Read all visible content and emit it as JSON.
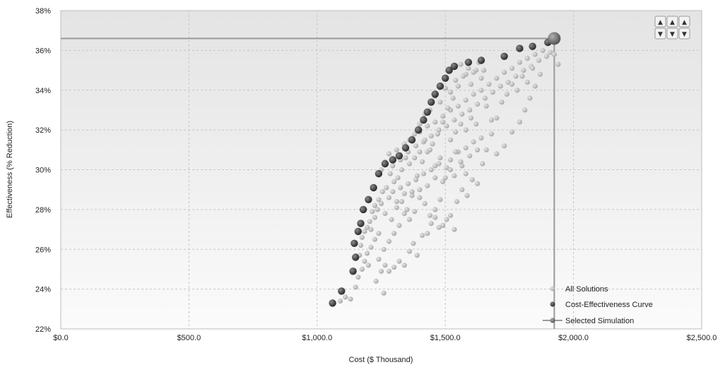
{
  "chart_data": {
    "type": "scatter",
    "xlabel": "Cost ($ Thousand)",
    "ylabel": "Effectiveness (% Reduction)",
    "xlim": [
      0,
      2500
    ],
    "ylim": [
      22,
      38
    ],
    "x_ticks": [
      "$0.0",
      "$500.0",
      "$1,000.0",
      "$1,500.0",
      "$2,000.0",
      "$2,500.0"
    ],
    "y_ticks": [
      "22%",
      "24%",
      "26%",
      "28%",
      "30%",
      "32%",
      "34%",
      "36%",
      "38%"
    ],
    "grid": true,
    "legend_position": "bottom-right",
    "series": [
      {
        "name": "All Solutions",
        "color": "#c2c2c2",
        "points": [
          [
            1090,
            23.4
          ],
          [
            1110,
            23.6
          ],
          [
            1130,
            23.5
          ],
          [
            1150,
            24.1
          ],
          [
            1160,
            24.6
          ],
          [
            1175,
            25.0
          ],
          [
            1185,
            25.4
          ],
          [
            1195,
            25.8
          ],
          [
            1210,
            26.1
          ],
          [
            1225,
            26.5
          ],
          [
            1240,
            25.5
          ],
          [
            1250,
            24.9
          ],
          [
            1265,
            25.2
          ],
          [
            1280,
            24.9
          ],
          [
            1300,
            25.1
          ],
          [
            1320,
            25.4
          ],
          [
            1340,
            25.2
          ],
          [
            1360,
            25.9
          ],
          [
            1375,
            26.3
          ],
          [
            1390,
            25.7
          ],
          [
            1410,
            26.7
          ],
          [
            1430,
            26.8
          ],
          [
            1445,
            27.3
          ],
          [
            1460,
            27.6
          ],
          [
            1475,
            27.1
          ],
          [
            1490,
            27.2
          ],
          [
            1505,
            27.5
          ],
          [
            1520,
            27.7
          ],
          [
            1535,
            27.0
          ],
          [
            1210,
            27.0
          ],
          [
            1225,
            27.6
          ],
          [
            1235,
            28.0
          ],
          [
            1250,
            28.3
          ],
          [
            1265,
            27.8
          ],
          [
            1280,
            28.6
          ],
          [
            1295,
            28.9
          ],
          [
            1310,
            28.4
          ],
          [
            1325,
            29.1
          ],
          [
            1340,
            28.8
          ],
          [
            1355,
            29.3
          ],
          [
            1370,
            28.7
          ],
          [
            1385,
            29.5
          ],
          [
            1400,
            29.0
          ],
          [
            1415,
            29.8
          ],
          [
            1430,
            29.2
          ],
          [
            1445,
            30.0
          ],
          [
            1460,
            29.6
          ],
          [
            1475,
            30.3
          ],
          [
            1490,
            29.4
          ],
          [
            1505,
            30.1
          ],
          [
            1520,
            30.5
          ],
          [
            1535,
            29.7
          ],
          [
            1550,
            30.9
          ],
          [
            1565,
            30.2
          ],
          [
            1580,
            31.1
          ],
          [
            1595,
            30.7
          ],
          [
            1610,
            31.4
          ],
          [
            1625,
            31.0
          ],
          [
            1640,
            31.6
          ],
          [
            1250,
            30.0
          ],
          [
            1265,
            30.4
          ],
          [
            1280,
            30.8
          ],
          [
            1295,
            30.2
          ],
          [
            1310,
            31.0
          ],
          [
            1325,
            30.5
          ],
          [
            1340,
            31.3
          ],
          [
            1355,
            30.9
          ],
          [
            1370,
            31.6
          ],
          [
            1385,
            31.2
          ],
          [
            1400,
            31.9
          ],
          [
            1415,
            31.4
          ],
          [
            1430,
            32.2
          ],
          [
            1445,
            31.7
          ],
          [
            1460,
            32.4
          ],
          [
            1475,
            32.0
          ],
          [
            1490,
            32.7
          ],
          [
            1505,
            32.2
          ],
          [
            1520,
            33.0
          ],
          [
            1535,
            32.5
          ],
          [
            1550,
            33.2
          ],
          [
            1565,
            32.8
          ],
          [
            1580,
            33.5
          ],
          [
            1595,
            33.0
          ],
          [
            1610,
            33.8
          ],
          [
            1625,
            33.3
          ],
          [
            1640,
            34.0
          ],
          [
            1655,
            33.6
          ],
          [
            1670,
            34.3
          ],
          [
            1685,
            33.9
          ],
          [
            1700,
            34.6
          ],
          [
            1715,
            34.2
          ],
          [
            1730,
            34.9
          ],
          [
            1745,
            34.4
          ],
          [
            1760,
            35.1
          ],
          [
            1775,
            34.7
          ],
          [
            1790,
            35.4
          ],
          [
            1805,
            35.0
          ],
          [
            1820,
            35.6
          ],
          [
            1835,
            35.2
          ],
          [
            1850,
            35.8
          ],
          [
            1865,
            35.5
          ],
          [
            1880,
            36.0
          ],
          [
            1895,
            35.7
          ],
          [
            1910,
            35.9
          ],
          [
            1925,
            35.8
          ],
          [
            1940,
            35.3
          ],
          [
            1870,
            34.8
          ],
          [
            1850,
            34.2
          ],
          [
            1830,
            33.6
          ],
          [
            1810,
            33.0
          ],
          [
            1790,
            32.4
          ],
          [
            1760,
            31.9
          ],
          [
            1730,
            31.2
          ],
          [
            1700,
            30.8
          ],
          [
            1680,
            32.5
          ],
          [
            1660,
            33.2
          ],
          [
            1640,
            34.6
          ],
          [
            1620,
            35.0
          ],
          [
            1600,
            34.3
          ],
          [
            1580,
            34.8
          ],
          [
            1560,
            35.3
          ],
          [
            1540,
            34.5
          ],
          [
            1520,
            33.9
          ],
          [
            1500,
            34.1
          ],
          [
            1480,
            33.4
          ],
          [
            1460,
            33.7
          ],
          [
            1440,
            33.0
          ],
          [
            1420,
            32.8
          ],
          [
            1400,
            32.3
          ],
          [
            1380,
            31.8
          ],
          [
            1360,
            31.5
          ],
          [
            1345,
            30.6
          ],
          [
            1330,
            30.0
          ],
          [
            1315,
            29.6
          ],
          [
            1300,
            29.4
          ],
          [
            1285,
            29.8
          ],
          [
            1270,
            29.1
          ],
          [
            1255,
            28.9
          ],
          [
            1240,
            28.5
          ],
          [
            1225,
            28.2
          ],
          [
            1215,
            27.9
          ],
          [
            1205,
            27.4
          ],
          [
            1195,
            27.1
          ],
          [
            1185,
            26.9
          ],
          [
            1175,
            26.6
          ],
          [
            1170,
            26.2
          ],
          [
            1165,
            25.7
          ],
          [
            1200,
            25.2
          ],
          [
            1230,
            24.4
          ],
          [
            1260,
            23.8
          ],
          [
            1545,
            28.4
          ],
          [
            1565,
            29.0
          ],
          [
            1585,
            28.7
          ],
          [
            1605,
            29.5
          ],
          [
            1625,
            29.3
          ],
          [
            1645,
            30.3
          ],
          [
            1660,
            31.0
          ],
          [
            1680,
            31.8
          ],
          [
            1700,
            32.6
          ],
          [
            1720,
            33.4
          ],
          [
            1740,
            33.8
          ],
          [
            1760,
            34.3
          ],
          [
            1780,
            34.0
          ],
          [
            1800,
            34.7
          ],
          [
            1820,
            34.4
          ],
          [
            1840,
            35.1
          ],
          [
            1480,
            28.5
          ],
          [
            1460,
            28.0
          ],
          [
            1440,
            27.7
          ],
          [
            1420,
            28.3
          ],
          [
            1400,
            28.6
          ],
          [
            1380,
            27.9
          ],
          [
            1360,
            27.5
          ],
          [
            1340,
            27.8
          ],
          [
            1320,
            27.2
          ],
          [
            1300,
            26.8
          ],
          [
            1280,
            26.4
          ],
          [
            1260,
            26.0
          ],
          [
            1240,
            26.8
          ],
          [
            1290,
            27.5
          ],
          [
            1310,
            28.1
          ],
          [
            1330,
            28.4
          ],
          [
            1350,
            28.0
          ],
          [
            1370,
            28.9
          ],
          [
            1390,
            29.7
          ],
          [
            1410,
            30.4
          ],
          [
            1430,
            30.9
          ],
          [
            1450,
            31.3
          ],
          [
            1470,
            31.8
          ],
          [
            1490,
            32.4
          ],
          [
            1510,
            33.1
          ],
          [
            1530,
            33.6
          ],
          [
            1550,
            34.2
          ],
          [
            1570,
            34.7
          ],
          [
            1590,
            35.1
          ],
          [
            1610,
            34.9
          ],
          [
            1630,
            35.4
          ],
          [
            1650,
            35.0
          ],
          [
            1520,
            31.5
          ],
          [
            1540,
            31.9
          ],
          [
            1560,
            32.3
          ],
          [
            1580,
            32.0
          ],
          [
            1600,
            32.6
          ],
          [
            1620,
            32.3
          ],
          [
            1580,
            29.8
          ],
          [
            1560,
            30.4
          ],
          [
            1540,
            30.9
          ],
          [
            1520,
            30.0
          ],
          [
            1500,
            29.6
          ],
          [
            1480,
            30.6
          ],
          [
            1460,
            30.2
          ],
          [
            1440,
            31.0
          ],
          [
            1420,
            31.5
          ],
          [
            1400,
            30.9
          ],
          [
            1380,
            30.6
          ],
          [
            1360,
            30.3
          ]
        ]
      },
      {
        "name": "Cost-Effectiveness Curve",
        "color": "#4a4a4a",
        "points": [
          [
            1060,
            23.3
          ],
          [
            1095,
            23.9
          ],
          [
            1140,
            24.9
          ],
          [
            1150,
            25.6
          ],
          [
            1145,
            26.3
          ],
          [
            1160,
            26.9
          ],
          [
            1170,
            27.3
          ],
          [
            1180,
            28.0
          ],
          [
            1200,
            28.5
          ],
          [
            1220,
            29.1
          ],
          [
            1240,
            29.8
          ],
          [
            1265,
            30.3
          ],
          [
            1295,
            30.5
          ],
          [
            1320,
            30.7
          ],
          [
            1345,
            31.1
          ],
          [
            1370,
            31.5
          ],
          [
            1395,
            32.0
          ],
          [
            1415,
            32.5
          ],
          [
            1430,
            32.9
          ],
          [
            1445,
            33.4
          ],
          [
            1460,
            33.8
          ],
          [
            1480,
            34.2
          ],
          [
            1500,
            34.6
          ],
          [
            1515,
            35.0
          ],
          [
            1535,
            35.2
          ],
          [
            1590,
            35.4
          ],
          [
            1640,
            35.5
          ],
          [
            1730,
            35.7
          ],
          [
            1790,
            36.1
          ],
          [
            1840,
            36.2
          ],
          [
            1900,
            36.4
          ]
        ]
      }
    ],
    "selected_simulation": {
      "name": "Selected Simulation",
      "x": 1925,
      "y": 36.6,
      "color": "#7a7a7a"
    }
  },
  "zoom_buttons": [
    "up",
    "up",
    "up",
    "down",
    "down",
    "down"
  ],
  "zoom_glyphs": {
    "up": "▲",
    "down": "▼"
  }
}
